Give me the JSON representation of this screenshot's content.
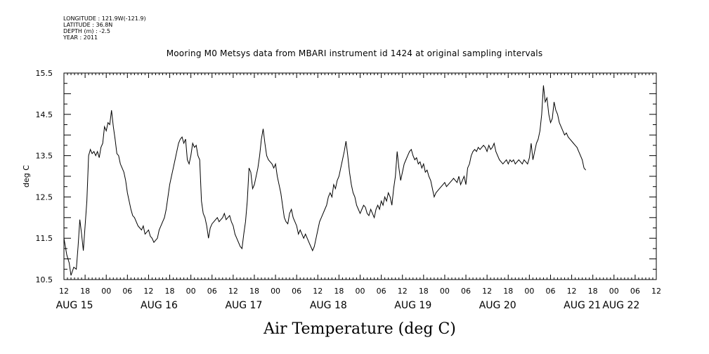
{
  "header": {
    "longitude": "LONGITUDE : 121.9W(-121.9)",
    "latitude": "LATITUDE : 36.8N",
    "depth": "DEPTH (m) : -2.5",
    "year": "YEAR : 2011"
  },
  "chart_data": {
    "type": "line",
    "title": "Mooring M0 Metsys data from MBARI instrument id 1424 at original sampling intervals",
    "xlabel": "Air Temperature (deg C)",
    "ylabel": "deg C",
    "x_unit": "hours since AUG 15 12:00 (tick labels show hour of day)",
    "xlim": [
      0,
      168
    ],
    "ylim": [
      10.5,
      15.5
    ],
    "y_ticks": [
      "15.5",
      "14.5",
      "13.5",
      "12.5",
      "11.5",
      "10.5"
    ],
    "x_tick_labels": [
      "12",
      "18",
      "00",
      "06",
      "12",
      "18",
      "00",
      "06",
      "12",
      "18",
      "00",
      "06",
      "12",
      "18",
      "00",
      "06",
      "12",
      "18",
      "00",
      "06",
      "12",
      "18",
      "00",
      "06",
      "12",
      "18",
      "00",
      "06",
      "12"
    ],
    "date_labels": [
      "AUG 15",
      "AUG 16",
      "AUG 17",
      "AUG 18",
      "AUG 19",
      "AUG 20",
      "AUG 21",
      "AUG 22"
    ],
    "grid": false,
    "series": [
      {
        "values": [
          [
            0,
            11.5
          ],
          [
            0.8,
            11.1
          ],
          [
            1.5,
            10.9
          ],
          [
            2,
            10.6
          ],
          [
            2.8,
            10.8
          ],
          [
            3.5,
            10.75
          ],
          [
            4,
            11.3
          ],
          [
            4.5,
            11.95
          ],
          [
            5,
            11.6
          ],
          [
            5.5,
            11.2
          ],
          [
            6,
            11.8
          ],
          [
            6.5,
            12.4
          ],
          [
            7,
            13.5
          ],
          [
            7.5,
            13.65
          ],
          [
            8,
            13.55
          ],
          [
            8.5,
            13.6
          ],
          [
            9,
            13.5
          ],
          [
            9.5,
            13.6
          ],
          [
            10,
            13.45
          ],
          [
            10.5,
            13.7
          ],
          [
            11,
            13.8
          ],
          [
            11.5,
            14.2
          ],
          [
            12,
            14.1
          ],
          [
            12.5,
            14.3
          ],
          [
            13,
            14.25
          ],
          [
            13.5,
            14.6
          ],
          [
            14,
            14.2
          ],
          [
            14.5,
            13.9
          ],
          [
            15,
            13.55
          ],
          [
            15.5,
            13.5
          ],
          [
            16,
            13.3
          ],
          [
            16.5,
            13.2
          ],
          [
            17,
            13.1
          ],
          [
            17.5,
            12.9
          ],
          [
            18,
            12.6
          ],
          [
            18.5,
            12.4
          ],
          [
            19,
            12.2
          ],
          [
            19.5,
            12.05
          ],
          [
            20,
            12.0
          ],
          [
            20.5,
            11.9
          ],
          [
            21,
            11.8
          ],
          [
            21.5,
            11.75
          ],
          [
            22,
            11.7
          ],
          [
            22.5,
            11.8
          ],
          [
            23,
            11.6
          ],
          [
            23.5,
            11.65
          ],
          [
            24,
            11.7
          ],
          [
            24.5,
            11.55
          ],
          [
            25,
            11.5
          ],
          [
            25.5,
            11.4
          ],
          [
            26,
            11.45
          ],
          [
            26.5,
            11.5
          ],
          [
            27,
            11.7
          ],
          [
            27.5,
            11.8
          ],
          [
            28,
            11.9
          ],
          [
            28.5,
            12.0
          ],
          [
            29,
            12.2
          ],
          [
            29.5,
            12.5
          ],
          [
            30,
            12.8
          ],
          [
            30.5,
            13.0
          ],
          [
            31,
            13.2
          ],
          [
            31.5,
            13.4
          ],
          [
            32,
            13.6
          ],
          [
            32.5,
            13.8
          ],
          [
            33,
            13.9
          ],
          [
            33.5,
            13.95
          ],
          [
            34,
            13.8
          ],
          [
            34.5,
            13.9
          ],
          [
            35,
            13.4
          ],
          [
            35.5,
            13.3
          ],
          [
            36,
            13.5
          ],
          [
            36.5,
            13.8
          ],
          [
            37,
            13.7
          ],
          [
            37.5,
            13.75
          ],
          [
            38,
            13.5
          ],
          [
            38.5,
            13.4
          ],
          [
            39,
            12.4
          ],
          [
            39.5,
            12.1
          ],
          [
            40,
            12.0
          ],
          [
            40.5,
            11.8
          ],
          [
            41,
            11.5
          ],
          [
            41.5,
            11.75
          ],
          [
            42,
            11.85
          ],
          [
            42.5,
            11.9
          ],
          [
            43,
            11.95
          ],
          [
            43.5,
            12.0
          ],
          [
            44,
            11.9
          ],
          [
            44.5,
            11.95
          ],
          [
            45,
            12.0
          ],
          [
            45.5,
            12.1
          ],
          [
            46,
            11.95
          ],
          [
            46.5,
            12.0
          ],
          [
            47,
            12.05
          ],
          [
            47.5,
            11.9
          ],
          [
            48,
            11.8
          ],
          [
            48.5,
            11.6
          ],
          [
            49,
            11.5
          ],
          [
            49.5,
            11.4
          ],
          [
            50,
            11.3
          ],
          [
            50.5,
            11.25
          ],
          [
            51,
            11.6
          ],
          [
            51.5,
            11.9
          ],
          [
            52,
            12.4
          ],
          [
            52.5,
            13.2
          ],
          [
            53,
            13.1
          ],
          [
            53.5,
            12.7
          ],
          [
            54,
            12.8
          ],
          [
            54.5,
            13.0
          ],
          [
            55,
            13.2
          ],
          [
            55.5,
            13.5
          ],
          [
            56,
            13.9
          ],
          [
            56.5,
            14.15
          ],
          [
            57,
            13.8
          ],
          [
            57.5,
            13.5
          ],
          [
            58,
            13.4
          ],
          [
            58.5,
            13.35
          ],
          [
            59,
            13.3
          ],
          [
            59.5,
            13.2
          ],
          [
            60,
            13.3
          ],
          [
            60.5,
            13.0
          ],
          [
            61,
            12.8
          ],
          [
            61.5,
            12.6
          ],
          [
            62,
            12.3
          ],
          [
            62.5,
            12.0
          ],
          [
            63,
            11.9
          ],
          [
            63.5,
            11.85
          ],
          [
            64,
            12.1
          ],
          [
            64.5,
            12.2
          ],
          [
            65,
            12.0
          ],
          [
            65.5,
            11.9
          ],
          [
            66,
            11.8
          ],
          [
            66.5,
            11.6
          ],
          [
            67,
            11.7
          ],
          [
            67.5,
            11.6
          ],
          [
            68,
            11.5
          ],
          [
            68.5,
            11.6
          ],
          [
            69,
            11.5
          ],
          [
            69.5,
            11.4
          ],
          [
            70,
            11.3
          ],
          [
            70.5,
            11.2
          ],
          [
            71,
            11.3
          ],
          [
            71.5,
            11.5
          ],
          [
            72,
            11.7
          ],
          [
            72.5,
            11.9
          ],
          [
            73,
            12.0
          ],
          [
            73.5,
            12.1
          ],
          [
            74,
            12.2
          ],
          [
            74.5,
            12.3
          ],
          [
            75,
            12.5
          ],
          [
            75.5,
            12.6
          ],
          [
            76,
            12.5
          ],
          [
            76.5,
            12.8
          ],
          [
            77,
            12.7
          ],
          [
            77.5,
            12.9
          ],
          [
            78,
            13.0
          ],
          [
            78.5,
            13.2
          ],
          [
            79,
            13.4
          ],
          [
            79.5,
            13.6
          ],
          [
            80,
            13.85
          ],
          [
            80.5,
            13.5
          ],
          [
            81,
            13.1
          ],
          [
            81.5,
            12.8
          ],
          [
            82,
            12.6
          ],
          [
            82.5,
            12.5
          ],
          [
            83,
            12.3
          ],
          [
            83.5,
            12.2
          ],
          [
            84,
            12.1
          ],
          [
            84.5,
            12.2
          ],
          [
            85,
            12.3
          ],
          [
            85.5,
            12.25
          ],
          [
            86,
            12.1
          ],
          [
            86.5,
            12.05
          ],
          [
            87,
            12.2
          ],
          [
            87.5,
            12.1
          ],
          [
            88,
            12.0
          ],
          [
            88.5,
            12.2
          ],
          [
            89,
            12.3
          ],
          [
            89.5,
            12.2
          ],
          [
            90,
            12.4
          ],
          [
            90.5,
            12.3
          ],
          [
            91,
            12.5
          ],
          [
            91.5,
            12.4
          ],
          [
            92,
            12.6
          ],
          [
            92.5,
            12.5
          ],
          [
            93,
            12.3
          ],
          [
            93.5,
            12.7
          ],
          [
            94,
            13.0
          ],
          [
            94.5,
            13.6
          ],
          [
            95,
            13.2
          ],
          [
            95.5,
            12.9
          ],
          [
            96,
            13.1
          ],
          [
            96.5,
            13.3
          ],
          [
            97,
            13.4
          ],
          [
            97.5,
            13.5
          ],
          [
            98,
            13.6
          ],
          [
            98.5,
            13.65
          ],
          [
            99,
            13.5
          ],
          [
            99.5,
            13.4
          ],
          [
            100,
            13.45
          ],
          [
            100.5,
            13.3
          ],
          [
            101,
            13.35
          ],
          [
            101.5,
            13.2
          ],
          [
            102,
            13.3
          ],
          [
            102.5,
            13.1
          ],
          [
            103,
            13.15
          ],
          [
            103.5,
            13.0
          ],
          [
            104,
            12.9
          ],
          [
            104.5,
            12.7
          ],
          [
            105,
            12.5
          ],
          [
            105.5,
            12.6
          ],
          [
            106,
            12.65
          ],
          [
            106.5,
            12.7
          ],
          [
            107,
            12.75
          ],
          [
            107.5,
            12.8
          ],
          [
            108,
            12.85
          ],
          [
            108.5,
            12.75
          ],
          [
            109,
            12.8
          ],
          [
            109.5,
            12.85
          ],
          [
            110,
            12.9
          ],
          [
            110.5,
            12.95
          ],
          [
            111,
            12.9
          ],
          [
            111.5,
            12.85
          ],
          [
            112,
            13.0
          ],
          [
            112.5,
            12.8
          ],
          [
            113,
            12.9
          ],
          [
            113.5,
            13.0
          ],
          [
            114,
            12.8
          ],
          [
            114.5,
            13.2
          ],
          [
            115,
            13.3
          ],
          [
            115.5,
            13.5
          ],
          [
            116,
            13.6
          ],
          [
            116.5,
            13.65
          ],
          [
            117,
            13.6
          ],
          [
            117.5,
            13.7
          ],
          [
            118,
            13.65
          ],
          [
            118.5,
            13.7
          ],
          [
            119,
            13.75
          ],
          [
            119.5,
            13.7
          ],
          [
            120,
            13.6
          ],
          [
            120.5,
            13.75
          ],
          [
            121,
            13.65
          ],
          [
            121.5,
            13.7
          ],
          [
            122,
            13.8
          ],
          [
            122.5,
            13.6
          ],
          [
            123,
            13.5
          ],
          [
            123.5,
            13.4
          ],
          [
            124,
            13.35
          ],
          [
            124.5,
            13.3
          ],
          [
            125,
            13.35
          ],
          [
            125.5,
            13.4
          ],
          [
            126,
            13.3
          ],
          [
            126.5,
            13.4
          ],
          [
            127,
            13.35
          ],
          [
            127.5,
            13.4
          ],
          [
            128,
            13.3
          ],
          [
            128.5,
            13.35
          ],
          [
            129,
            13.4
          ],
          [
            129.5,
            13.35
          ],
          [
            130,
            13.3
          ],
          [
            130.5,
            13.4
          ],
          [
            131,
            13.35
          ],
          [
            131.5,
            13.3
          ],
          [
            132,
            13.45
          ],
          [
            132.5,
            13.8
          ],
          [
            133,
            13.4
          ],
          [
            133.5,
            13.6
          ],
          [
            134,
            13.8
          ],
          [
            134.5,
            13.9
          ],
          [
            135,
            14.1
          ],
          [
            135.5,
            14.5
          ],
          [
            136,
            15.2
          ],
          [
            136.5,
            14.8
          ],
          [
            137,
            14.9
          ],
          [
            137.5,
            14.5
          ],
          [
            138,
            14.3
          ],
          [
            138.5,
            14.4
          ],
          [
            139,
            14.8
          ],
          [
            139.5,
            14.6
          ],
          [
            140,
            14.5
          ],
          [
            140.5,
            14.3
          ],
          [
            141,
            14.2
          ],
          [
            141.5,
            14.1
          ],
          [
            142,
            14.0
          ],
          [
            142.5,
            14.05
          ],
          [
            143,
            13.95
          ],
          [
            143.5,
            13.9
          ],
          [
            144,
            13.85
          ],
          [
            144.5,
            13.8
          ],
          [
            145,
            13.75
          ],
          [
            145.5,
            13.7
          ],
          [
            146,
            13.6
          ],
          [
            146.5,
            13.5
          ],
          [
            147,
            13.4
          ],
          [
            147.5,
            13.2
          ],
          [
            148,
            13.15
          ]
        ]
      }
    ]
  }
}
